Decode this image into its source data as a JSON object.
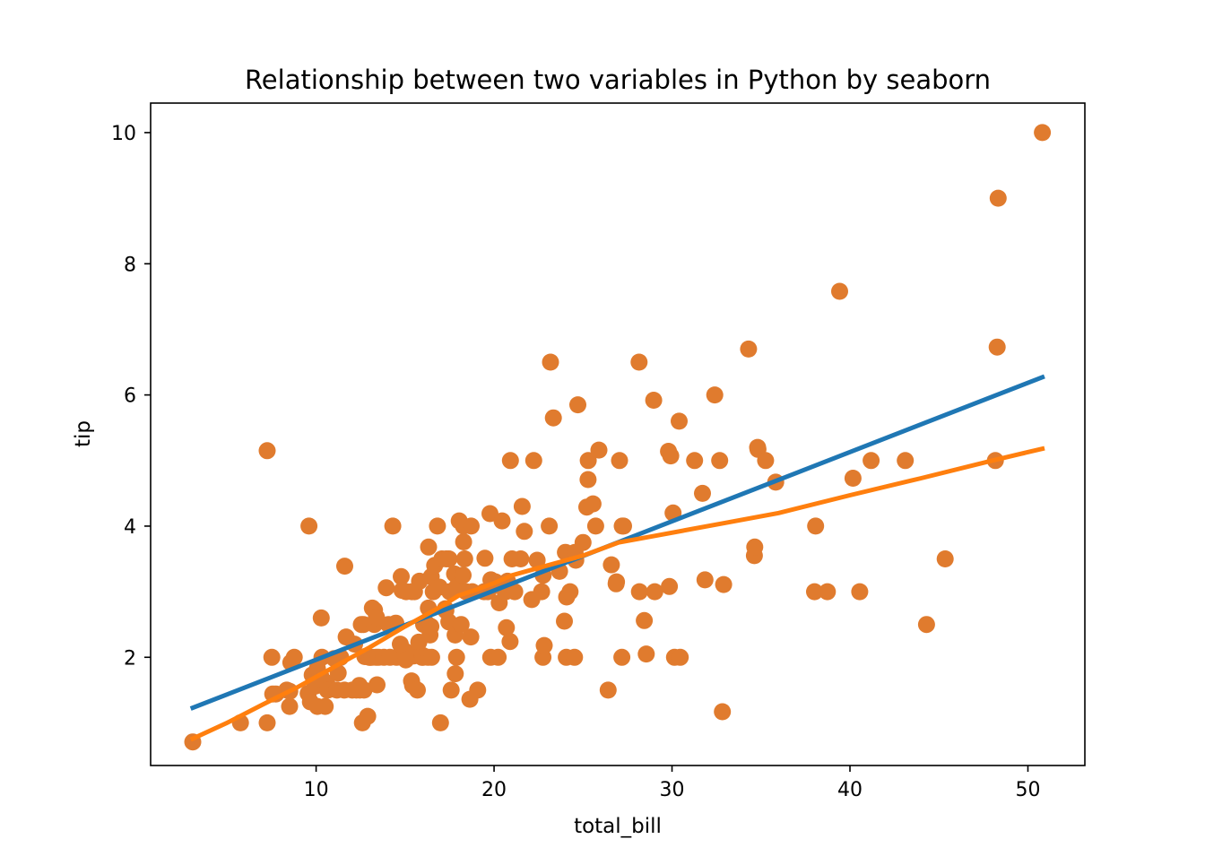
{
  "chart_data": {
    "type": "scatter",
    "title": "Relationship between two variables in Python by seaborn",
    "xlabel": "total_bill",
    "ylabel": "tip",
    "xlim": [
      0.7,
      53.2
    ],
    "ylim": [
      0.35,
      10.45
    ],
    "xticks": [
      10,
      20,
      30,
      40,
      50
    ],
    "yticks": [
      2,
      4,
      6,
      8,
      10
    ],
    "grid": false,
    "colors": {
      "points": "#e07b2e",
      "regression_line": "#1f77b4",
      "lowess_line": "#ff7f0e",
      "axes": "#000000",
      "background": "#ffffff"
    },
    "series": [
      {
        "kind": "points",
        "x": [
          3.07,
          5.75,
          7.25,
          7.25,
          7.51,
          7.56,
          7.74,
          8.35,
          8.51,
          8.52,
          8.58,
          8.77,
          9.55,
          9.6,
          9.68,
          9.78,
          9.94,
          10.07,
          10.07,
          10.27,
          10.29,
          10.33,
          10.34,
          10.51,
          10.59,
          10.63,
          10.65,
          11.02,
          11.17,
          11.24,
          11.38,
          11.59,
          11.61,
          11.69,
          12.03,
          12.16,
          12.26,
          12.43,
          12.46,
          12.54,
          12.6,
          12.66,
          12.69,
          12.74,
          12.9,
          13.0,
          13.03,
          13.13,
          13.16,
          13.27,
          13.28,
          13.37,
          13.39,
          13.42,
          13.51,
          13.81,
          13.94,
          14.07,
          14.15,
          14.31,
          14.48,
          14.52,
          14.73,
          14.78,
          14.83,
          15.01,
          15.04,
          15.06,
          15.36,
          15.38,
          15.42,
          15.48,
          15.53,
          15.69,
          15.77,
          15.81,
          15.95,
          15.98,
          16.0,
          16.04,
          16.27,
          16.29,
          16.31,
          16.32,
          16.4,
          16.45,
          16.47,
          16.49,
          16.58,
          16.66,
          16.82,
          16.93,
          16.99,
          17.07,
          17.26,
          17.29,
          17.31,
          17.46,
          17.47,
          17.51,
          17.59,
          17.78,
          17.81,
          17.82,
          17.89,
          17.92,
          18.04,
          18.15,
          18.24,
          18.26,
          18.28,
          18.29,
          18.35,
          18.43,
          18.64,
          18.69,
          18.71,
          18.78,
          19.08,
          19.44,
          19.49,
          19.65,
          19.77,
          19.81,
          19.82,
          20.08,
          20.23,
          20.27,
          20.29,
          20.45,
          20.65,
          20.69,
          20.76,
          20.9,
          20.92,
          21.01,
          21.16,
          21.5,
          21.58,
          21.7,
          22.12,
          22.23,
          22.42,
          22.67,
          22.75,
          22.76,
          22.82,
          23.1,
          23.17,
          23.33,
          23.68,
          23.95,
          24.01,
          24.06,
          24.08,
          24.27,
          24.52,
          24.55,
          24.59,
          24.71,
          25.0,
          25.21,
          25.28,
          25.29,
          25.56,
          25.71,
          25.89,
          26.41,
          26.59,
          26.86,
          26.88,
          27.05,
          27.18,
          27.2,
          27.28,
          28.15,
          28.17,
          28.44,
          28.55,
          28.97,
          29.03,
          29.8,
          29.85,
          29.93,
          30.06,
          30.14,
          30.4,
          30.46,
          31.27,
          31.71,
          31.85,
          32.4,
          32.68,
          32.83,
          32.9,
          34.3,
          34.63,
          34.65,
          34.81,
          34.83,
          35.26,
          35.83,
          38.01,
          38.07,
          38.73,
          39.42,
          40.17,
          40.55,
          41.19,
          43.11,
          44.3,
          45.35,
          48.17,
          48.27,
          48.33,
          50.81
        ],
        "y": [
          0.71,
          1.0,
          1.0,
          5.15,
          2.0,
          1.44,
          1.44,
          1.5,
          1.25,
          1.48,
          1.92,
          2.0,
          1.45,
          4.0,
          1.32,
          1.73,
          1.56,
          1.25,
          1.83,
          1.71,
          2.6,
          2.0,
          1.66,
          1.25,
          1.61,
          1.5,
          1.5,
          1.98,
          1.5,
          1.76,
          2.0,
          1.5,
          3.39,
          2.31,
          1.5,
          2.2,
          1.5,
          1.57,
          1.5,
          2.5,
          1.0,
          2.5,
          1.5,
          2.01,
          1.1,
          2.0,
          2.0,
          2.0,
          2.75,
          2.5,
          2.72,
          2.0,
          2.61,
          1.58,
          2.0,
          2.0,
          3.06,
          2.5,
          2.0,
          4.0,
          2.52,
          2.0,
          2.2,
          3.23,
          3.02,
          2.09,
          1.96,
          3.0,
          1.64,
          3.0,
          1.57,
          2.02,
          3.0,
          1.5,
          2.23,
          3.16,
          2.0,
          2.03,
          2.0,
          2.5,
          2.5,
          2.0,
          2.75,
          3.68,
          2.34,
          2.47,
          3.23,
          2.0,
          3.0,
          3.4,
          4.0,
          3.07,
          1.0,
          3.5,
          2.74,
          2.71,
          3.5,
          2.54,
          3.5,
          3.0,
          1.5,
          3.27,
          2.34,
          1.75,
          2.0,
          3.08,
          4.08,
          2.5,
          3.25,
          3.25,
          4.0,
          3.76,
          3.5,
          3.0,
          1.36,
          2.31,
          4.0,
          3.0,
          1.5,
          3.0,
          3.51,
          3.0,
          4.19,
          2.0,
          3.18,
          3.15,
          2.0,
          3.09,
          2.83,
          4.08,
          3.0,
          2.45,
          3.16,
          2.24,
          5.0,
          3.5,
          3.0,
          3.5,
          4.3,
          3.92,
          2.88,
          5.0,
          3.48,
          3.0,
          2.0,
          3.25,
          2.18,
          4.0,
          6.5,
          5.65,
          3.31,
          2.55,
          3.6,
          2.0,
          2.92,
          3.0,
          2.0,
          3.6,
          3.48,
          5.85,
          3.75,
          4.29,
          4.71,
          5.0,
          4.34,
          4.0,
          5.16,
          1.5,
          3.41,
          3.12,
          3.15,
          5.0,
          2.0,
          4.0,
          4.0,
          6.5,
          3.0,
          2.56,
          2.05,
          5.92,
          3.0,
          5.14,
          3.08,
          5.07,
          4.2,
          2.0,
          5.6,
          2.0,
          5.0,
          4.5,
          3.18,
          6.0,
          5.0,
          1.17,
          3.11,
          6.7,
          3.55,
          3.68,
          5.2,
          5.17,
          5.0,
          4.67,
          3.0,
          4.0,
          3.0,
          7.58,
          4.73,
          3.0,
          5.0,
          5.0,
          2.5,
          3.5,
          5.0,
          6.73,
          9.0,
          10.0
        ]
      },
      {
        "kind": "linear_regression",
        "x": [
          3.07,
          50.81
        ],
        "y": [
          1.23,
          6.27
        ]
      },
      {
        "kind": "lowess",
        "x": [
          3.07,
          5.0,
          7.0,
          9.0,
          11.0,
          13.0,
          15.0,
          17.0,
          18.0,
          19.0,
          20.0,
          21.0,
          23.0,
          25.0,
          27.0,
          29.0,
          33.0,
          36.0,
          40.0,
          44.0,
          48.0,
          50.81
        ],
        "y": [
          0.76,
          1.0,
          1.28,
          1.55,
          1.85,
          2.15,
          2.47,
          2.77,
          2.94,
          3.03,
          3.13,
          3.25,
          3.4,
          3.55,
          3.75,
          3.85,
          4.05,
          4.2,
          4.47,
          4.73,
          5.0,
          5.18
        ]
      }
    ]
  }
}
